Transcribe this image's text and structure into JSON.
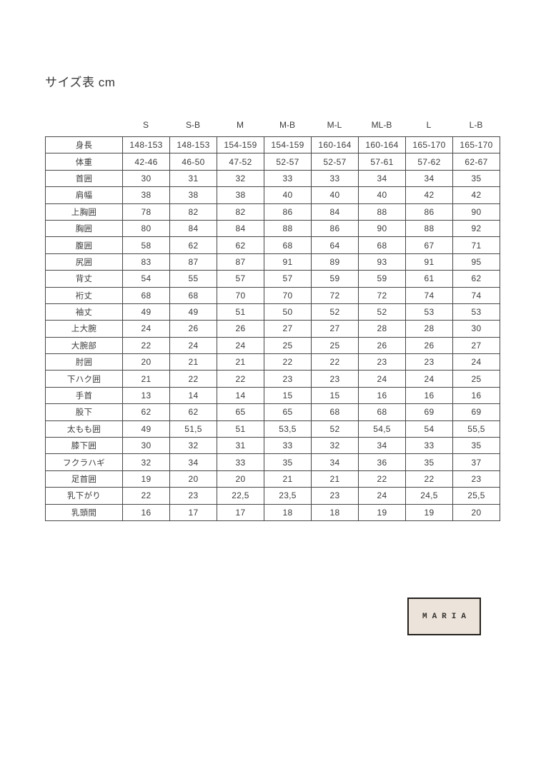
{
  "page": {
    "title": "サイズ表 cm"
  },
  "table": {
    "unit": "cm",
    "size_headers": [
      "S",
      "S-B",
      "M",
      "M-B",
      "M-L",
      "ML-B",
      "L",
      "L-B"
    ],
    "rows": [
      {
        "label": "身長",
        "values": [
          "148-153",
          "148-153",
          "154-159",
          "154-159",
          "160-164",
          "160-164",
          "165-170",
          "165-170"
        ]
      },
      {
        "label": "体重",
        "values": [
          "42-46",
          "46-50",
          "47-52",
          "52-57",
          "52-57",
          "57-61",
          "57-62",
          "62-67"
        ]
      },
      {
        "label": "首囲",
        "values": [
          "30",
          "31",
          "32",
          "33",
          "33",
          "34",
          "34",
          "35"
        ]
      },
      {
        "label": "肩幅",
        "values": [
          "38",
          "38",
          "38",
          "40",
          "40",
          "40",
          "42",
          "42"
        ]
      },
      {
        "label": "上胸囲",
        "values": [
          "78",
          "82",
          "82",
          "86",
          "84",
          "88",
          "86",
          "90"
        ]
      },
      {
        "label": "胸囲",
        "values": [
          "80",
          "84",
          "84",
          "88",
          "86",
          "90",
          "88",
          "92"
        ]
      },
      {
        "label": "腹囲",
        "values": [
          "58",
          "62",
          "62",
          "68",
          "64",
          "68",
          "67",
          "71"
        ]
      },
      {
        "label": "尻囲",
        "values": [
          "83",
          "87",
          "87",
          "91",
          "89",
          "93",
          "91",
          "95"
        ]
      },
      {
        "label": "背丈",
        "values": [
          "54",
          "55",
          "57",
          "57",
          "59",
          "59",
          "61",
          "62"
        ]
      },
      {
        "label": "裄丈",
        "values": [
          "68",
          "68",
          "70",
          "70",
          "72",
          "72",
          "74",
          "74"
        ]
      },
      {
        "label": "袖丈",
        "values": [
          "49",
          "49",
          "51",
          "50",
          "52",
          "52",
          "53",
          "53"
        ]
      },
      {
        "label": "上大腕",
        "values": [
          "24",
          "26",
          "26",
          "27",
          "27",
          "28",
          "28",
          "30"
        ]
      },
      {
        "label": "大腕部",
        "values": [
          "22",
          "24",
          "24",
          "25",
          "25",
          "26",
          "26",
          "27"
        ]
      },
      {
        "label": "肘囲",
        "values": [
          "20",
          "21",
          "21",
          "22",
          "22",
          "23",
          "23",
          "24"
        ]
      },
      {
        "label": "下ハク囲",
        "values": [
          "21",
          "22",
          "22",
          "23",
          "23",
          "24",
          "24",
          "25"
        ]
      },
      {
        "label": "手首",
        "values": [
          "13",
          "14",
          "14",
          "15",
          "15",
          "16",
          "16",
          "16"
        ]
      },
      {
        "label": "股下",
        "values": [
          "62",
          "62",
          "65",
          "65",
          "68",
          "68",
          "69",
          "69"
        ]
      },
      {
        "label": "太もも囲",
        "values": [
          "49",
          "51,5",
          "51",
          "53,5",
          "52",
          "54,5",
          "54",
          "55,5"
        ]
      },
      {
        "label": "膝下囲",
        "values": [
          "30",
          "32",
          "31",
          "33",
          "32",
          "34",
          "33",
          "35"
        ]
      },
      {
        "label": "フクラハギ",
        "values": [
          "32",
          "34",
          "33",
          "35",
          "34",
          "36",
          "35",
          "37"
        ]
      },
      {
        "label": "足首囲",
        "values": [
          "19",
          "20",
          "20",
          "21",
          "21",
          "22",
          "22",
          "23"
        ]
      },
      {
        "label": "乳下がり",
        "values": [
          "22",
          "23",
          "22,5",
          "23,5",
          "23",
          "24",
          "24,5",
          "25,5"
        ]
      },
      {
        "label": "乳頭間",
        "values": [
          "16",
          "17",
          "17",
          "18",
          "18",
          "19",
          "19",
          "20"
        ]
      }
    ]
  },
  "logo": {
    "text": "MARIA",
    "background": "#ece3da",
    "border_color": "#23201c"
  },
  "colors": {
    "page_background": "#ffffff",
    "text": "#3c3c3c",
    "table_border": "#474747"
  }
}
